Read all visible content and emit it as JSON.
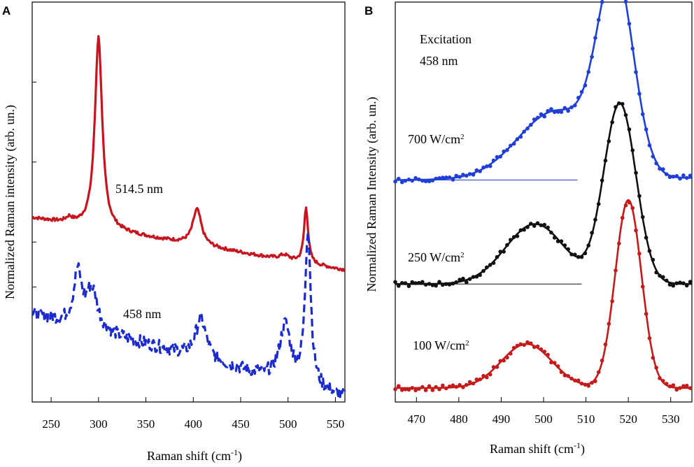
{
  "chart_data": [
    {
      "panel": "A",
      "type": "line",
      "xlabel": "Raman shift (cm",
      "xlabel_sup": "-1",
      "xlabel_end": ")",
      "ylabel": "Normalized Raman intensity (arb. un.)",
      "xlim": [
        230,
        560
      ],
      "ylim": [
        0,
        1.0
      ],
      "xticks": [
        250,
        300,
        350,
        400,
        450,
        500,
        550
      ],
      "series": [
        {
          "name": "514.5 nm",
          "label": "514.5 nm",
          "color": "#c8141e",
          "style": "solid",
          "peaks": [
            [
              269,
              0.012,
              4
            ],
            [
              300,
              0.48,
              4.6
            ],
            [
              404,
              0.09,
              5.5
            ],
            [
              496,
              0.012,
              6
            ],
            [
              519,
              0.14,
              2.6
            ]
          ],
          "baseline_start": 0.46,
          "baseline_end": 0.33,
          "noise": 0.004
        },
        {
          "name": "458 nm",
          "label": "458 nm",
          "color": "#1c2bd0",
          "style": "dashed",
          "peaks": [
            [
              278,
              0.13,
              5
            ],
            [
              293,
              0.1,
              7
            ],
            [
              408,
              0.1,
              7
            ],
            [
              497,
              0.14,
              7
            ],
            [
              521,
              0.39,
              3.6
            ]
          ],
          "baseline_start": 0.22,
          "baseline_end": 0.01,
          "noise": 0.016
        }
      ]
    },
    {
      "panel": "B",
      "type": "scatter",
      "xlabel": "Raman shift (cm",
      "xlabel_sup": "-1",
      "xlabel_end": ")",
      "ylabel": "Normalized Raman Intensity (arb. un.)",
      "xlim": [
        465,
        535
      ],
      "ylim": [
        0,
        1.0
      ],
      "xticks": [
        470,
        480,
        490,
        500,
        510,
        520,
        530
      ],
      "annotation_line1": "Excitation",
      "annotation_line2": "458 nm",
      "series": [
        {
          "name": "700 W/cm2",
          "label": "700 W/cm",
          "label_sup": "2",
          "color": "#1f3fd8",
          "offset": 0.52,
          "baseline_end": 0.005,
          "reference_line_to": 508,
          "main_peak": [
            517.0,
            0.48,
            4.2
          ],
          "shoulder": [
            503,
            0.17,
            9
          ]
        },
        {
          "name": "250 W/cm2",
          "label": "250 W/cm",
          "label_sup": "2",
          "color": "#111111",
          "offset": 0.26,
          "baseline_end": 0.0,
          "reference_line_to": 509,
          "main_peak": [
            518.0,
            0.45,
            3.8
          ],
          "shoulder": [
            498,
            0.15,
            7
          ]
        },
        {
          "name": "100 W/cm2",
          "label": "100 W/cm",
          "label_sup": "2",
          "color": "#c41a1a",
          "offset": 0.0,
          "baseline_end": 0.0,
          "reference_line_to": null,
          "main_peak": [
            520.0,
            0.47,
            3.1
          ],
          "shoulder": [
            496,
            0.11,
            6
          ]
        }
      ]
    }
  ]
}
